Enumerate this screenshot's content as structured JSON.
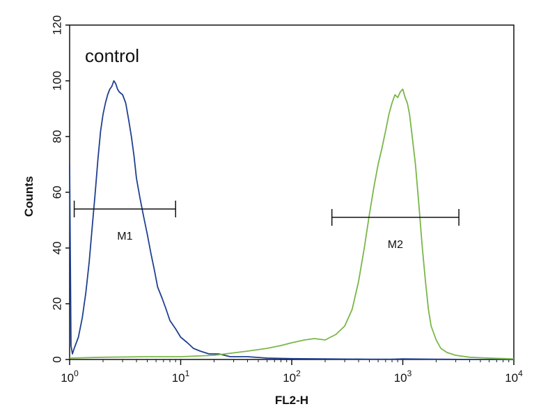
{
  "chart_data": {
    "type": "line",
    "xlabel": "FL2-H",
    "ylabel": "Counts",
    "xscale": "log",
    "xlim": [
      1,
      10000
    ],
    "ylim": [
      0,
      120
    ],
    "grid": false,
    "annotations": [
      {
        "text": "control",
        "x": 1.3,
        "y": 107
      }
    ],
    "x_ticks": [
      {
        "base": "10",
        "exp": "0",
        "value": 1
      },
      {
        "base": "10",
        "exp": "1",
        "value": 10
      },
      {
        "base": "10",
        "exp": "2",
        "value": 100
      },
      {
        "base": "10",
        "exp": "3",
        "value": 1000
      },
      {
        "base": "10",
        "exp": "4",
        "value": 10000
      }
    ],
    "y_ticks": [
      "0",
      "20",
      "40",
      "60",
      "80",
      "100",
      "120"
    ],
    "markers": [
      {
        "name": "M1",
        "x_start": 1.1,
        "x_end": 9,
        "y": 54
      },
      {
        "name": "M2",
        "x_start": 230,
        "x_end": 3200,
        "y": 51
      }
    ],
    "series": [
      {
        "color": "#1f3f8f",
        "x": [
          1.0,
          1.03,
          1.06,
          1.1,
          1.2,
          1.3,
          1.4,
          1.5,
          1.6,
          1.7,
          1.8,
          1.9,
          2.0,
          2.1,
          2.2,
          2.3,
          2.4,
          2.5,
          2.6,
          2.7,
          2.8,
          3.0,
          3.2,
          3.4,
          3.6,
          3.8,
          4.0,
          4.3,
          4.6,
          5.0,
          5.4,
          5.8,
          6.2,
          6.8,
          7.4,
          8.0,
          9.0,
          10.0,
          11.5,
          13.0,
          15.0,
          18.0,
          22.0,
          28.0,
          40.0,
          60.0,
          100.0,
          200.0,
          500.0,
          800.0,
          1000.0,
          2000.0,
          4000.0,
          10000.0
        ],
        "y": [
          70,
          5,
          2,
          4,
          8,
          15,
          24,
          35,
          48,
          60,
          72,
          82,
          88,
          92,
          95,
          97,
          98,
          100,
          99,
          97,
          96,
          95,
          92,
          86,
          80,
          73,
          65,
          58,
          52,
          45,
          38,
          32,
          26,
          22,
          18,
          14,
          11,
          8,
          6,
          4,
          3,
          2,
          2,
          1,
          1,
          0.5,
          0.3,
          0.2,
          0.1,
          0.1,
          0.2,
          0.1,
          0,
          0
        ]
      },
      {
        "color": "#7ab648",
        "x": [
          1.0,
          2.0,
          5.0,
          10.0,
          20.0,
          40.0,
          60.0,
          80.0,
          100.0,
          130.0,
          160.0,
          200.0,
          250.0,
          300.0,
          350.0,
          400.0,
          450.0,
          500.0,
          550.0,
          600.0,
          650.0,
          700.0,
          750.0,
          800.0,
          850.0,
          900.0,
          950.0,
          1000.0,
          1050.0,
          1100.0,
          1150.0,
          1200.0,
          1300.0,
          1400.0,
          1500.0,
          1600.0,
          1700.0,
          1800.0,
          2000.0,
          2200.0,
          2500.0,
          3000.0,
          4000.0,
          6000.0,
          10000.0
        ],
        "y": [
          0.5,
          0.8,
          1,
          1,
          1.5,
          3,
          4,
          5,
          6,
          7,
          7.5,
          7,
          9,
          12,
          18,
          28,
          40,
          52,
          62,
          70,
          76,
          82,
          88,
          92,
          95,
          94,
          96,
          97,
          94,
          92,
          88,
          82,
          70,
          55,
          40,
          28,
          18,
          12,
          7,
          4,
          2.5,
          1.5,
          0.8,
          0.5,
          0.2
        ]
      }
    ]
  }
}
